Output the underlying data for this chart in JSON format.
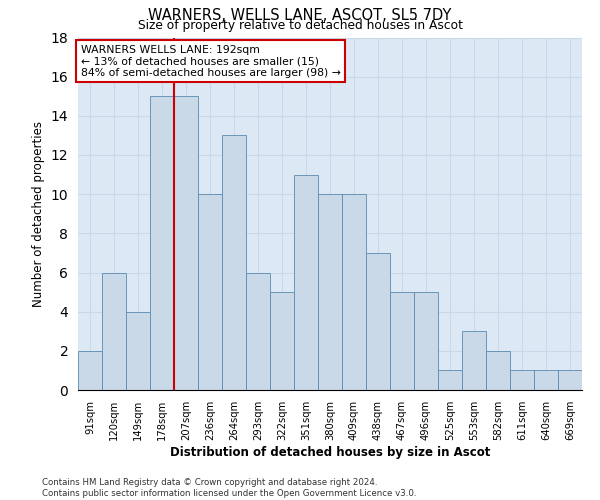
{
  "title": "WARNERS, WELLS LANE, ASCOT, SL5 7DY",
  "subtitle": "Size of property relative to detached houses in Ascot",
  "xlabel": "Distribution of detached houses by size in Ascot",
  "ylabel": "Number of detached properties",
  "categories": [
    "91sqm",
    "120sqm",
    "149sqm",
    "178sqm",
    "207sqm",
    "236sqm",
    "264sqm",
    "293sqm",
    "322sqm",
    "351sqm",
    "380sqm",
    "409sqm",
    "438sqm",
    "467sqm",
    "496sqm",
    "525sqm",
    "553sqm",
    "582sqm",
    "611sqm",
    "640sqm",
    "669sqm"
  ],
  "values": [
    2,
    6,
    4,
    15,
    15,
    10,
    13,
    6,
    5,
    11,
    10,
    10,
    7,
    5,
    5,
    1,
    3,
    2,
    1,
    1,
    1
  ],
  "bar_color": "#c9d9e8",
  "bar_edge_color": "#5a8ab0",
  "annotation_text_line1": "WARNERS WELLS LANE: 192sqm",
  "annotation_text_line2": "← 13% of detached houses are smaller (15)",
  "annotation_text_line3": "84% of semi-detached houses are larger (98) →",
  "annotation_box_color": "#cc0000",
  "grid_color": "#c8d8e8",
  "footer_text": "Contains HM Land Registry data © Crown copyright and database right 2024.\nContains public sector information licensed under the Open Government Licence v3.0.",
  "ylim": [
    0,
    18
  ],
  "yticks": [
    0,
    2,
    4,
    6,
    8,
    10,
    12,
    14,
    16,
    18
  ],
  "vline_x_index": 3,
  "background_color": "#dce9f5",
  "fig_background": "#ffffff"
}
